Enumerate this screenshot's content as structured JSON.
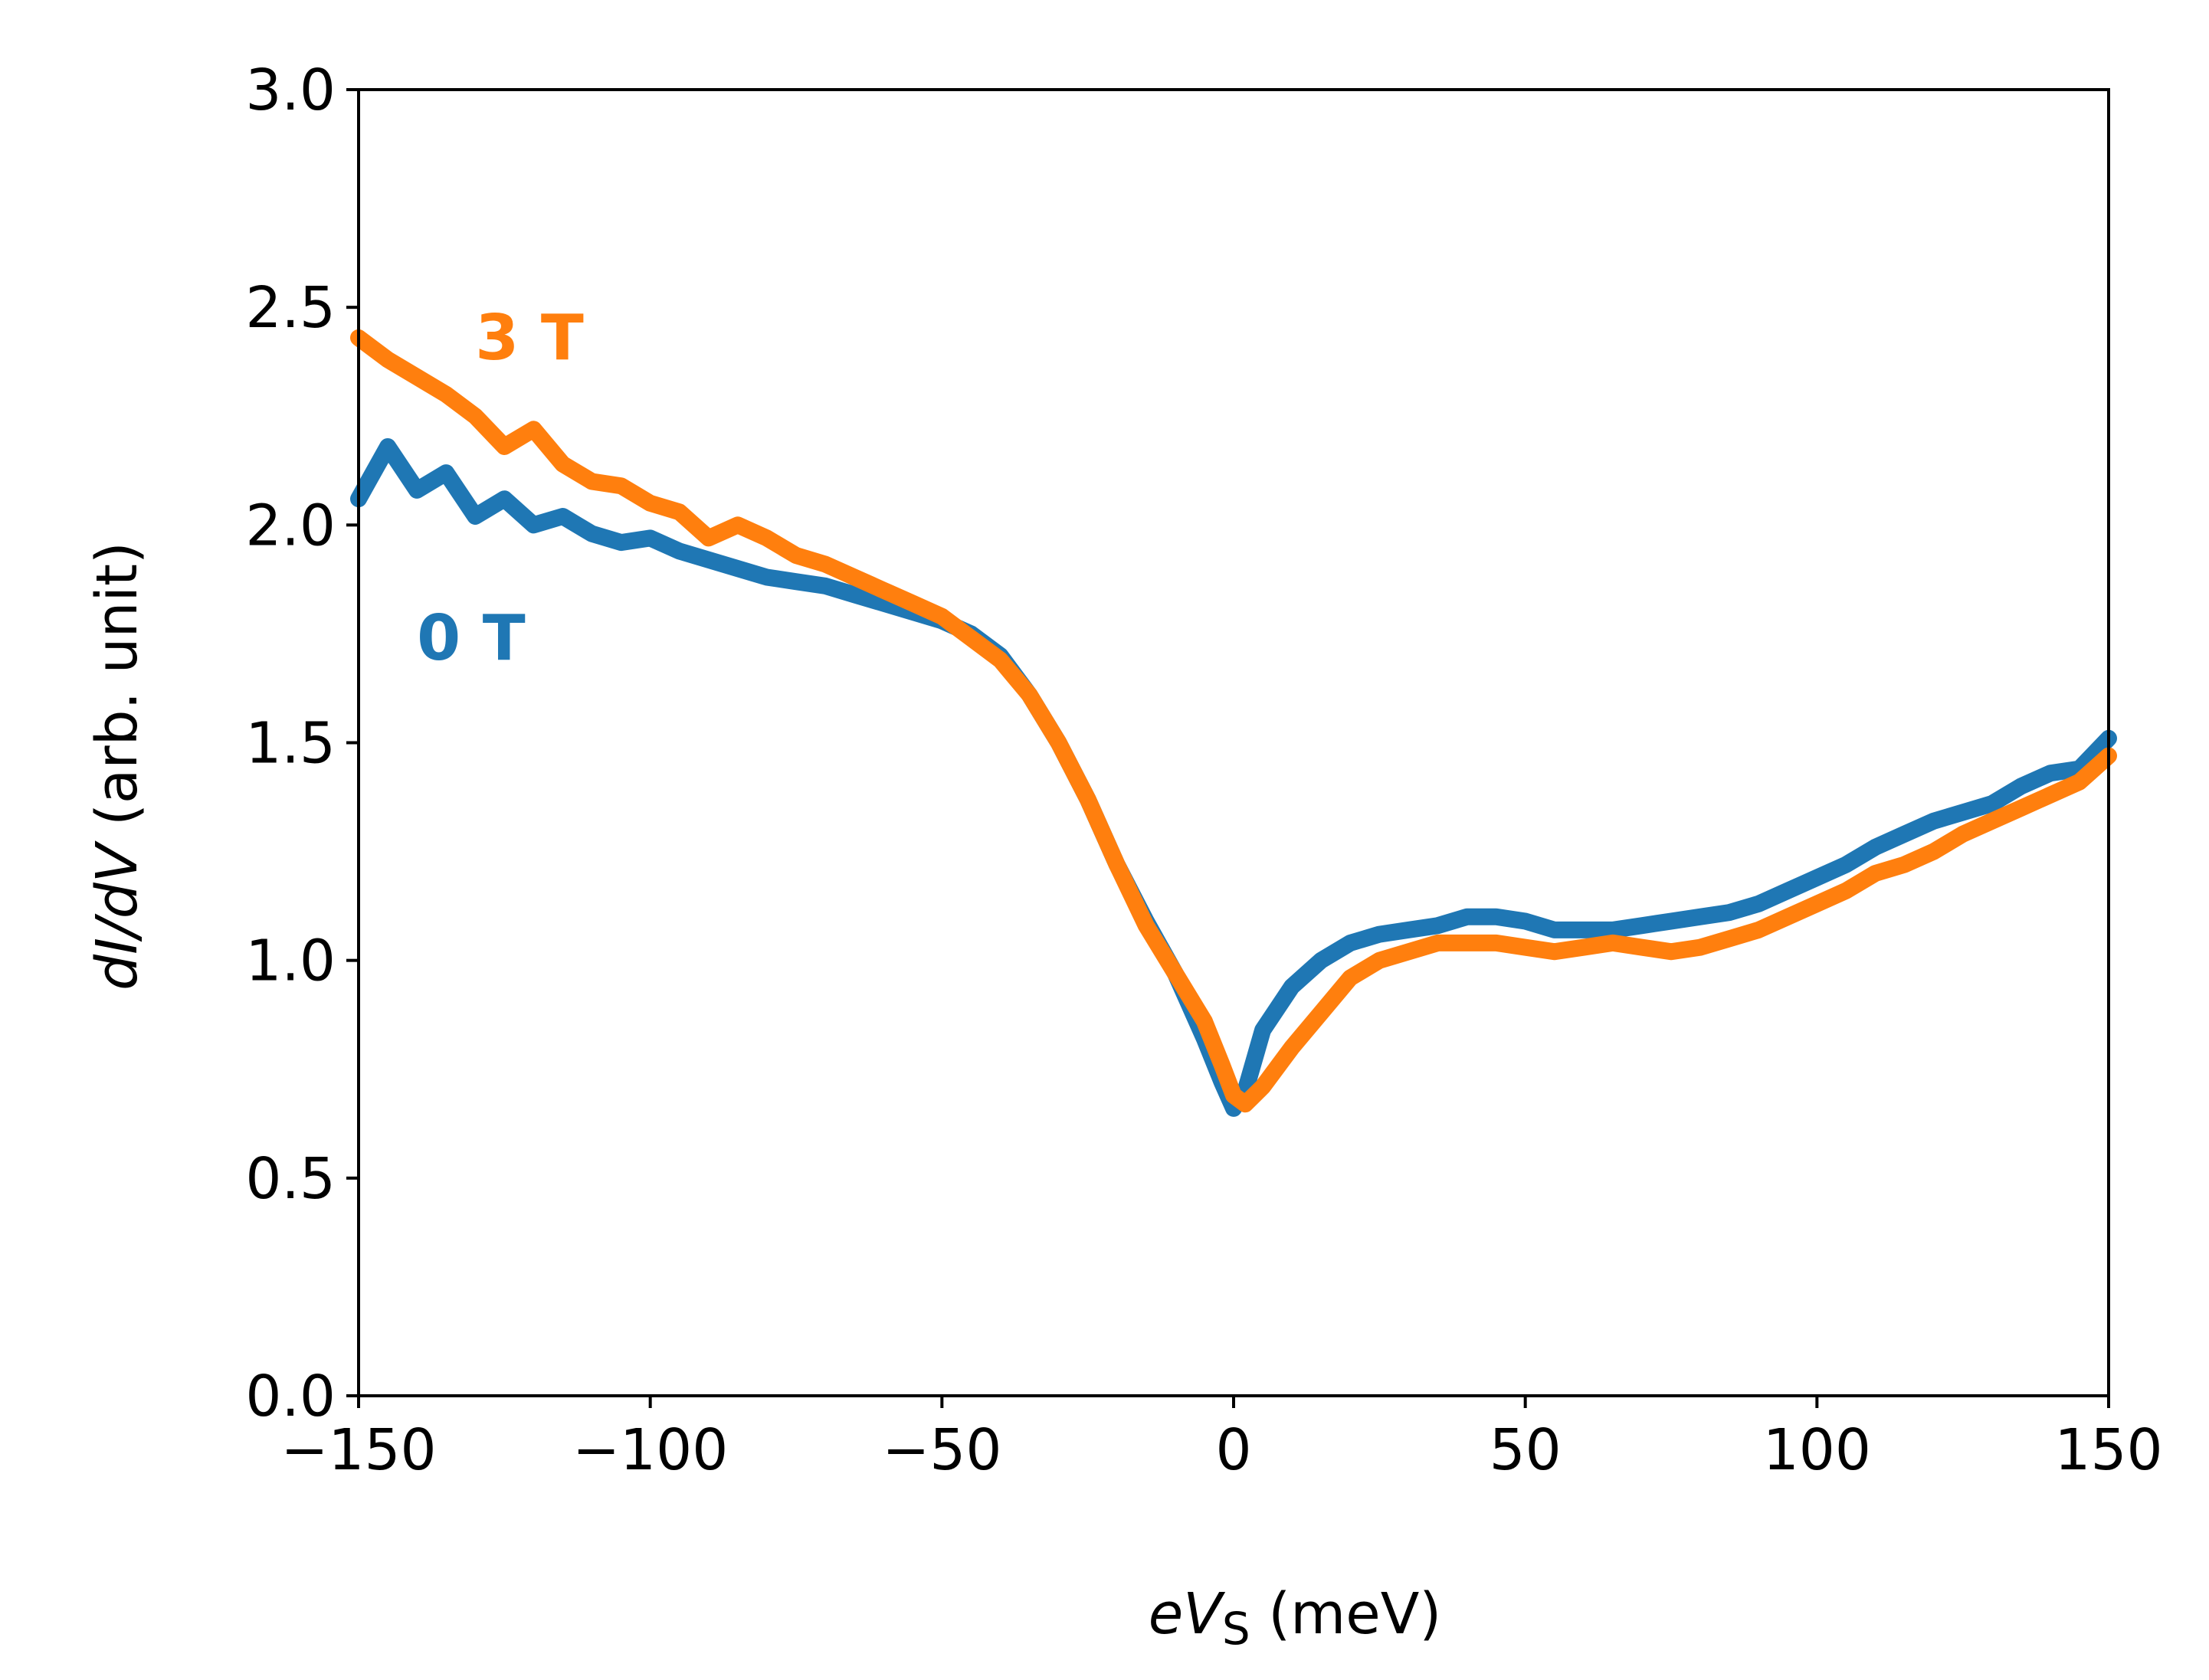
{
  "chart_data": {
    "type": "line",
    "title": "",
    "xlabel": {
      "main": "eV",
      "subscript": "S",
      "unit": " (meV)"
    },
    "ylabel": {
      "italic": "dI/dV",
      "unit": " (arb. unit)"
    },
    "xlim": [
      -150,
      150
    ],
    "ylim": [
      0.0,
      3.0
    ],
    "x_ticks": [
      -150,
      -100,
      -50,
      0,
      50,
      100,
      150
    ],
    "x_tick_labels": [
      "−150",
      "−100",
      "−50",
      "0",
      "50",
      "100",
      "150"
    ],
    "y_ticks": [
      0.0,
      0.5,
      1.0,
      1.5,
      2.0,
      2.5,
      3.0
    ],
    "y_tick_labels": [
      "0.0",
      "0.5",
      "1.0",
      "1.5",
      "2.0",
      "2.5",
      "3.0"
    ],
    "grid": false,
    "series": [
      {
        "name": "0 T",
        "label": "0 T",
        "color": "#1f77b4",
        "x": [
          -150,
          -145,
          -140,
          -135,
          -130,
          -125,
          -120,
          -115,
          -110,
          -105,
          -100,
          -95,
          -90,
          -85,
          -80,
          -75,
          -70,
          -65,
          -60,
          -55,
          -50,
          -45,
          -40,
          -35,
          -30,
          -25,
          -20,
          -15,
          -10,
          -5,
          -2,
          0,
          2,
          5,
          10,
          15,
          20,
          25,
          30,
          35,
          40,
          45,
          50,
          55,
          60,
          65,
          70,
          75,
          80,
          85,
          90,
          95,
          100,
          105,
          110,
          115,
          120,
          125,
          130,
          135,
          140,
          145,
          150
        ],
        "y": [
          2.06,
          2.18,
          2.08,
          2.12,
          2.02,
          2.06,
          2.0,
          2.02,
          1.98,
          1.96,
          1.97,
          1.94,
          1.92,
          1.9,
          1.88,
          1.87,
          1.86,
          1.84,
          1.82,
          1.8,
          1.78,
          1.75,
          1.7,
          1.61,
          1.5,
          1.37,
          1.22,
          1.09,
          0.97,
          0.82,
          0.72,
          0.66,
          0.7,
          0.84,
          0.94,
          1.0,
          1.04,
          1.06,
          1.07,
          1.08,
          1.1,
          1.1,
          1.09,
          1.07,
          1.07,
          1.07,
          1.08,
          1.09,
          1.1,
          1.11,
          1.13,
          1.16,
          1.19,
          1.22,
          1.26,
          1.29,
          1.32,
          1.34,
          1.36,
          1.4,
          1.43,
          1.44,
          1.51
        ]
      },
      {
        "name": "3 T",
        "label": "3 T",
        "color": "#ff7f0e",
        "x": [
          -150,
          -145,
          -140,
          -135,
          -130,
          -125,
          -120,
          -115,
          -110,
          -105,
          -100,
          -95,
          -90,
          -85,
          -80,
          -75,
          -70,
          -65,
          -60,
          -55,
          -50,
          -45,
          -40,
          -35,
          -30,
          -25,
          -20,
          -15,
          -10,
          -5,
          -2,
          0,
          2,
          5,
          10,
          15,
          20,
          25,
          30,
          35,
          40,
          45,
          50,
          55,
          60,
          65,
          70,
          75,
          80,
          85,
          90,
          95,
          100,
          105,
          110,
          115,
          120,
          125,
          130,
          135,
          140,
          145,
          150
        ],
        "y": [
          2.43,
          2.38,
          2.34,
          2.3,
          2.25,
          2.18,
          2.22,
          2.14,
          2.1,
          2.09,
          2.05,
          2.03,
          1.97,
          2.0,
          1.97,
          1.93,
          1.91,
          1.88,
          1.85,
          1.82,
          1.79,
          1.74,
          1.69,
          1.61,
          1.5,
          1.37,
          1.22,
          1.08,
          0.97,
          0.86,
          0.76,
          0.69,
          0.67,
          0.71,
          0.8,
          0.88,
          0.96,
          1.0,
          1.02,
          1.04,
          1.04,
          1.04,
          1.03,
          1.02,
          1.03,
          1.04,
          1.03,
          1.02,
          1.03,
          1.05,
          1.07,
          1.1,
          1.13,
          1.16,
          1.2,
          1.22,
          1.25,
          1.29,
          1.32,
          1.35,
          1.38,
          1.41,
          1.47
        ]
      }
    ],
    "annotations": [
      {
        "text": "3 T",
        "color": "#ff7f0e",
        "x": -130,
        "y": 2.43
      },
      {
        "text": "0 T",
        "color": "#1f77b4",
        "x": -140,
        "y": 1.74
      }
    ]
  }
}
